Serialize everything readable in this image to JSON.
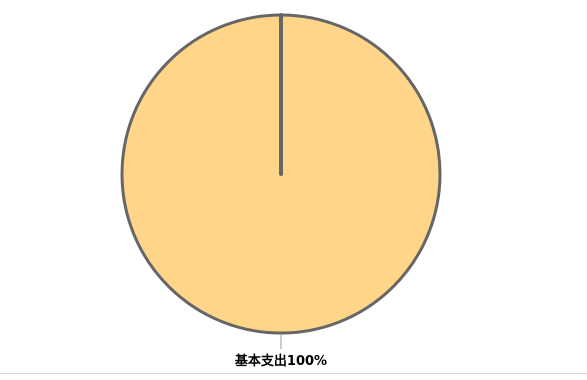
{
  "chart_data": {
    "type": "pie",
    "title": "",
    "slices": [
      {
        "label": "基本支出100%",
        "category": "基本支出",
        "value": 100
      }
    ],
    "colors": {
      "slice_fill": "#FFD58A",
      "slice_stroke": "#666666",
      "leader_line": "#999999"
    },
    "start_angle": "top",
    "label_placement": "outside-bottom",
    "legend": "none"
  }
}
